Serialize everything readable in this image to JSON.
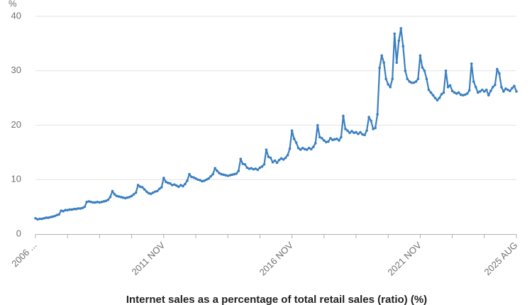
{
  "chart_data": {
    "type": "line",
    "y_unit": "%",
    "x_label": "Internet sales as a percentage of total retail sales (ratio) (%)",
    "color": "#3a7fc1",
    "ylim": [
      0,
      40
    ],
    "yticks": [
      0,
      10,
      20,
      30,
      40
    ],
    "grid": true,
    "categories": [
      "2006 ...",
      null,
      null,
      null,
      null,
      null,
      null,
      null,
      null,
      null,
      null,
      null,
      null,
      null,
      null,
      null,
      null,
      null,
      null,
      null,
      null,
      null,
      null,
      null,
      null,
      null,
      null,
      null,
      null,
      null,
      null,
      null,
      null,
      null,
      null,
      null,
      null,
      null,
      null,
      null,
      null,
      null,
      null,
      null,
      null,
      null,
      null,
      null,
      null,
      null,
      null,
      null,
      null,
      null,
      null,
      null,
      null,
      null,
      null,
      null,
      "2011 NOV",
      null,
      null,
      null,
      null,
      null,
      null,
      null,
      null,
      null,
      null,
      null,
      null,
      null,
      null,
      null,
      null,
      null,
      null,
      null,
      null,
      null,
      null,
      null,
      null,
      null,
      null,
      null,
      null,
      null,
      null,
      null,
      null,
      null,
      null,
      null,
      null,
      null,
      null,
      null,
      null,
      null,
      null,
      null,
      null,
      null,
      null,
      null,
      null,
      null,
      null,
      null,
      null,
      null,
      null,
      null,
      null,
      null,
      null,
      null,
      "2016 NOV",
      null,
      null,
      null,
      null,
      null,
      null,
      null,
      null,
      null,
      null,
      null,
      null,
      null,
      null,
      null,
      null,
      null,
      null,
      null,
      null,
      null,
      null,
      null,
      null,
      null,
      null,
      null,
      null,
      null,
      null,
      null,
      null,
      null,
      null,
      null,
      null,
      null,
      null,
      null,
      null,
      null,
      null,
      null,
      null,
      null,
      null,
      null,
      null,
      null,
      null,
      null,
      null,
      null,
      null,
      null,
      null,
      null,
      null,
      null,
      "2021 NOV",
      null,
      null,
      null,
      null,
      null,
      null,
      null,
      null,
      null,
      null,
      null,
      null,
      null,
      null,
      null,
      null,
      null,
      null,
      null,
      null,
      null,
      null,
      null,
      null,
      null,
      null,
      null,
      null,
      null,
      null,
      null,
      null,
      null,
      null,
      null,
      null,
      null,
      null,
      null,
      null,
      null,
      null,
      null,
      null,
      "2025 AUG"
    ],
    "values": [
      2.9,
      2.7,
      2.8,
      2.8,
      2.9,
      3.0,
      3.0,
      3.1,
      3.2,
      3.3,
      3.5,
      3.6,
      4.3,
      4.2,
      4.4,
      4.4,
      4.5,
      4.5,
      4.6,
      4.6,
      4.7,
      4.7,
      4.8,
      5.0,
      5.9,
      6.0,
      5.9,
      5.8,
      5.8,
      5.9,
      5.8,
      5.9,
      6.0,
      6.1,
      6.3,
      6.8,
      7.9,
      7.3,
      7.0,
      6.9,
      6.8,
      6.7,
      6.6,
      6.7,
      6.8,
      7.0,
      7.3,
      7.6,
      9.0,
      8.7,
      8.6,
      8.2,
      7.8,
      7.5,
      7.4,
      7.6,
      7.8,
      7.9,
      8.3,
      8.6,
      10.3,
      9.6,
      9.4,
      9.3,
      9.0,
      9.1,
      8.9,
      8.7,
      9.0,
      8.8,
      9.2,
      9.8,
      11.0,
      10.5,
      10.4,
      10.2,
      10.0,
      9.9,
      9.7,
      9.8,
      10.0,
      10.2,
      10.6,
      11.0,
      12.1,
      11.6,
      11.2,
      11.0,
      10.9,
      10.8,
      10.7,
      10.8,
      10.9,
      11.0,
      11.1,
      11.6,
      13.8,
      12.9,
      12.8,
      12.2,
      12.0,
      12.1,
      11.9,
      12.0,
      11.8,
      12.2,
      12.4,
      12.8,
      15.5,
      14.2,
      14.0,
      13.2,
      13.5,
      13.1,
      13.6,
      13.9,
      13.7,
      14.0,
      14.5,
      15.7,
      19.0,
      17.5,
      16.8,
      15.8,
      15.5,
      15.8,
      15.6,
      15.5,
      15.8,
      15.6,
      16.0,
      16.7,
      20.0,
      17.8,
      17.6,
      17.2,
      16.9,
      17.0,
      17.6,
      17.3,
      17.4,
      17.5,
      17.2,
      17.8,
      21.7,
      19.3,
      19.0,
      18.6,
      18.9,
      18.6,
      18.7,
      18.4,
      18.7,
      18.3,
      18.2,
      19.0,
      21.5,
      20.8,
      19.3,
      19.5,
      22.0,
      30.5,
      32.8,
      31.5,
      28.5,
      27.5,
      27.0,
      28.5,
      36.8,
      31.5,
      35.5,
      37.8,
      34.5,
      30.0,
      28.5,
      28.0,
      27.8,
      27.8,
      28.0,
      28.5,
      32.8,
      30.6,
      30.0,
      28.5,
      26.5,
      26.0,
      25.5,
      25.0,
      24.6,
      25.0,
      25.7,
      26.0,
      30.0,
      27.0,
      27.3,
      26.3,
      26.0,
      25.8,
      26.0,
      25.6,
      25.5,
      25.6,
      25.8,
      26.4,
      31.3,
      28.0,
      27.0,
      26.0,
      26.2,
      26.5,
      26.2,
      26.5,
      25.5,
      26.3,
      27.0,
      27.4,
      30.3,
      29.5,
      27.0,
      26.2,
      26.7,
      26.5,
      26.3,
      26.8,
      27.2,
      26.2
    ]
  }
}
